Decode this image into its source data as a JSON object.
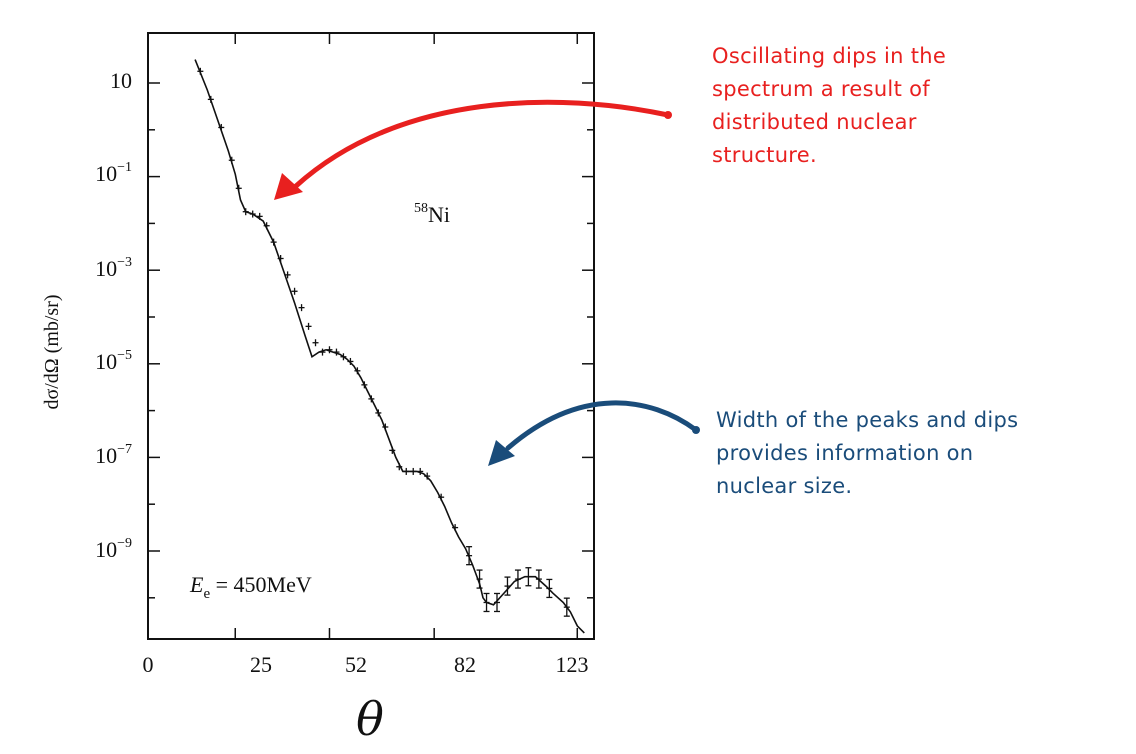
{
  "chart_data": {
    "type": "line",
    "title": "",
    "xlabel": "θ",
    "ylabel": "dσ/dΩ (mb/sr)",
    "y_scale": "log",
    "x_ticks": [
      "0",
      "25",
      "52",
      "82",
      "123"
    ],
    "y_ticks": [
      {
        "base": "10",
        "exp": ""
      },
      {
        "base": "10",
        "exp": "−1"
      },
      {
        "base": "10",
        "exp": "−3"
      },
      {
        "base": "10",
        "exp": "−5"
      },
      {
        "base": "10",
        "exp": "−7"
      },
      {
        "base": "10",
        "exp": "−9"
      }
    ],
    "annotations": {
      "nucleus_mass": "58",
      "nucleus_symbol": "Ni",
      "energy_symbol": "E",
      "energy_subscript": "e",
      "energy_value": " = 450MeV"
    },
    "series": [
      {
        "x": [
          13.5,
          17,
          20,
          23,
          25,
          26.5,
          28,
          30,
          33,
          36,
          39,
          42,
          45,
          47,
          49,
          51,
          53,
          55,
          57,
          59,
          61,
          63,
          65,
          67,
          69,
          71,
          73,
          75,
          77,
          79,
          81,
          83,
          85,
          87,
          89,
          91,
          93,
          95,
          96,
          97,
          99,
          102,
          105,
          108,
          111,
          114,
          116,
          119,
          121,
          123,
          125
        ],
        "y_log10": [
          1.5,
          0.85,
          0.2,
          -0.45,
          -0.95,
          -1.5,
          -1.75,
          -1.8,
          -1.95,
          -2.4,
          -3.05,
          -3.7,
          -4.4,
          -4.85,
          -4.75,
          -4.7,
          -4.75,
          -4.8,
          -4.9,
          -5.05,
          -5.3,
          -5.6,
          -5.9,
          -6.2,
          -6.6,
          -7.0,
          -7.3,
          -7.3,
          -7.3,
          -7.35,
          -7.5,
          -7.75,
          -8.05,
          -8.4,
          -8.7,
          -8.95,
          -9.3,
          -9.7,
          -10.0,
          -10.1,
          -10.15,
          -9.9,
          -9.65,
          -9.55,
          -9.55,
          -9.75,
          -9.9,
          -10.1,
          -10.3,
          -10.6,
          -10.75
        ]
      }
    ],
    "data_points": {
      "x": [
        15,
        18,
        21,
        24,
        26,
        28,
        30,
        32,
        34,
        36,
        38,
        40,
        42,
        44,
        46,
        48,
        50,
        52,
        54,
        56,
        58,
        60,
        62,
        64,
        66,
        68,
        70,
        72,
        74,
        76,
        78,
        80,
        84,
        88,
        92,
        95,
        97,
        100,
        103,
        106,
        109,
        112,
        115,
        120
      ],
      "y_log10": [
        1.25,
        0.65,
        0.05,
        -0.65,
        -1.25,
        -1.75,
        -1.8,
        -1.85,
        -2.05,
        -2.4,
        -2.75,
        -3.1,
        -3.45,
        -3.8,
        -4.2,
        -4.55,
        -4.75,
        -4.7,
        -4.75,
        -4.85,
        -4.95,
        -5.15,
        -5.45,
        -5.75,
        -6.05,
        -6.35,
        -6.85,
        -7.2,
        -7.3,
        -7.3,
        -7.3,
        -7.4,
        -7.85,
        -8.5,
        -9.1,
        -9.6,
        -10.1,
        -10.1,
        -9.75,
        -9.6,
        -9.55,
        -9.6,
        -9.8,
        -10.2
      ]
    }
  },
  "notes": {
    "red": [
      "Oscillating dips in the",
      "spectrum a result of",
      "distributed nuclear",
      "structure."
    ],
    "blue": [
      "Width of the peaks and dips",
      "provides information on",
      "nuclear size."
    ]
  },
  "colors": {
    "red": "#e8201f",
    "blue": "#1a4c7a",
    "ink": "#111111"
  }
}
